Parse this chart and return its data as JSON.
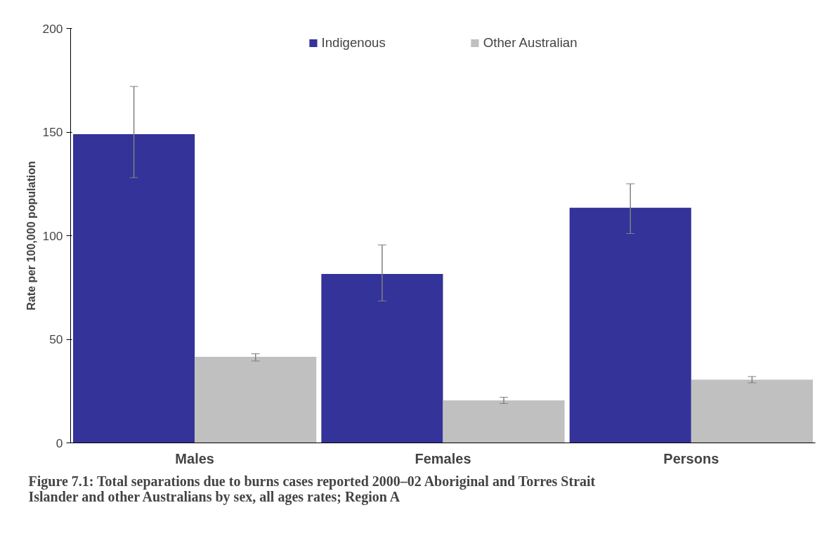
{
  "chart_data": {
    "type": "bar",
    "ylabel": "Rate per 100,000 population",
    "categories": [
      "Males",
      "Females",
      "Persons"
    ],
    "series": [
      {
        "name": "Indigenous",
        "color": "#333399",
        "values": [
          149,
          81.5,
          113.5
        ],
        "errors": [
          [
            128,
            172
          ],
          [
            68.5,
            95.5
          ],
          [
            101,
            125
          ]
        ]
      },
      {
        "name": "Other Australian",
        "color": "#c0c0c0",
        "values": [
          41.5,
          20.5,
          30.5
        ],
        "errors": [
          [
            39.5,
            43
          ],
          [
            19,
            22
          ],
          [
            29,
            32
          ]
        ]
      }
    ],
    "ylim": [
      0,
      200
    ],
    "yticks": [
      0,
      50,
      100,
      150,
      200
    ],
    "grid": false,
    "legend": "top",
    "annotations": [
      "Figure 7.1: Total separations due to burns cases reported 2000–02 Aboriginal and Torres Strait Islander and other Australians by sex, all ages rates; Region A"
    ]
  }
}
